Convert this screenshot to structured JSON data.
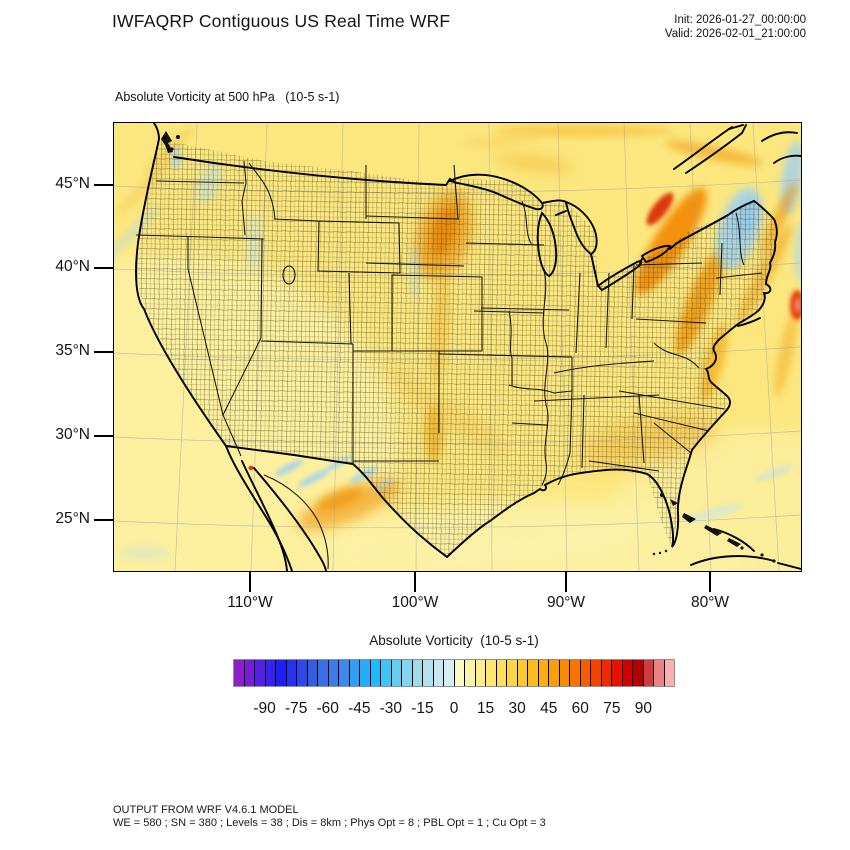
{
  "header": {
    "title": "IWFAQRP Contiguous US Real Time WRF",
    "init_label": "Init: 2026-01-27_00:00:00",
    "valid_label": "Valid: 2026-02-01_21:00:00"
  },
  "map": {
    "subtitle": "Absolute Vorticity at 500 hPa   (10-5 s-1)",
    "y_tick_labels": [
      "45°N",
      "40°N",
      "35°N",
      "30°N",
      "25°N"
    ],
    "x_tick_labels": [
      "110°W",
      "100°W",
      "90°W",
      "80°W"
    ]
  },
  "colorbar": {
    "title": "Absolute Vorticity  (10-5 s-1)",
    "tick_labels": [
      "-90",
      "-75",
      "-60",
      "-45",
      "-30",
      "-15",
      "0",
      "15",
      "30",
      "45",
      "60",
      "75",
      "90"
    ],
    "colors": [
      "#8b1fc8",
      "#761dd8",
      "#5520e4",
      "#3622ee",
      "#1f1ff2",
      "#2433ee",
      "#2b49ea",
      "#325ee6",
      "#386fe6",
      "#3b7ce9",
      "#3a8aee",
      "#329df4",
      "#25adf8",
      "#1fbaf9",
      "#3dc6f5",
      "#62cef1",
      "#84d6ee",
      "#9edcec",
      "#b3e2ee",
      "#c5e8f1",
      "#d8eef5",
      "#fef9c6",
      "#fdf4a6",
      "#fdee8b",
      "#fde770",
      "#fddf58",
      "#fdd544",
      "#fcc932",
      "#fbbc20",
      "#faae12",
      "#f99f08",
      "#f88a02",
      "#f77500",
      "#f65c00",
      "#f54200",
      "#f22800",
      "#e61200",
      "#cc0300",
      "#b40000",
      "#d23b3b",
      "#ea8383",
      "#fbb1b1"
    ]
  },
  "footer": {
    "line1": "OUTPUT FROM WRF V4.6.1 MODEL",
    "line2": "WE = 580 ; SN = 380 ; Levels = 38 ; Dis = 8km ; Phys Opt = 8 ; PBL Opt = 1 ; Cu Opt = 3"
  },
  "chart_data": {
    "type": "heatmap",
    "title": "Absolute Vorticity at 500 hPa",
    "units": "10-5 s-1",
    "model_header": "IWFAQRP Contiguous US Real Time WRF",
    "init": "2026-01-27_00:00:00",
    "valid": "2026-02-01_21:00:00",
    "x_ticks": [
      "110°W",
      "100°W",
      "90°W",
      "80°W"
    ],
    "y_ticks": [
      "45°N",
      "40°N",
      "35°N",
      "30°N",
      "25°N"
    ],
    "colorbar": {
      "label": "Absolute Vorticity  (10-5 s-1)",
      "min": -105,
      "max": 105,
      "step": 5,
      "tick_values": [
        -90,
        -75,
        -60,
        -45,
        -30,
        -15,
        0,
        15,
        30,
        45,
        60,
        75,
        90
      ],
      "colors": [
        "#8b1fc8",
        "#761dd8",
        "#5520e4",
        "#3622ee",
        "#1f1ff2",
        "#2433ee",
        "#2b49ea",
        "#325ee6",
        "#386fe6",
        "#3b7ce9",
        "#3a8aee",
        "#329df4",
        "#25adf8",
        "#1fbaf9",
        "#3dc6f5",
        "#62cef1",
        "#84d6ee",
        "#9edcec",
        "#b3e2ee",
        "#c5e8f1",
        "#d8eef5",
        "#fef9c6",
        "#fdf4a6",
        "#fdee8b",
        "#fde770",
        "#fddf58",
        "#fdd544",
        "#fcc932",
        "#fbbc20",
        "#faae12",
        "#f99f08",
        "#f88a02",
        "#f77500",
        "#f65c00",
        "#f54200",
        "#f22800",
        "#e61200",
        "#cc0300",
        "#b40000",
        "#d23b3b",
        "#ea8383",
        "#fbb1b1"
      ]
    },
    "estimated_features": [
      {
        "region": "Most of CONUS background",
        "value_est": "0 to 15",
        "appearance": "pale yellow"
      },
      {
        "region": "South Dakota / central Plains blob",
        "value_est": "30 to 45",
        "appearance": "orange maximum"
      },
      {
        "region": "Kansas-Oklahoma streak",
        "value_est": "15 to 30",
        "appearance": "orange streak"
      },
      {
        "region": "Appalachians into New England band",
        "value_est": "45 to 75",
        "appearance": "strong orange-red band"
      },
      {
        "region": "Western Atlantic offshore blob (right edge)",
        "value_est": "75 to 100",
        "appearance": "red with pink core"
      },
      {
        "region": "Northern New England / NE corner",
        "value_est": "-15 to -30",
        "appearance": "light blue negative vorticity"
      },
      {
        "region": "Northern Mexico mountain-wave ripples",
        "value_est": "-15 to 30 alternating",
        "appearance": "blue/orange wave trains"
      }
    ]
  }
}
